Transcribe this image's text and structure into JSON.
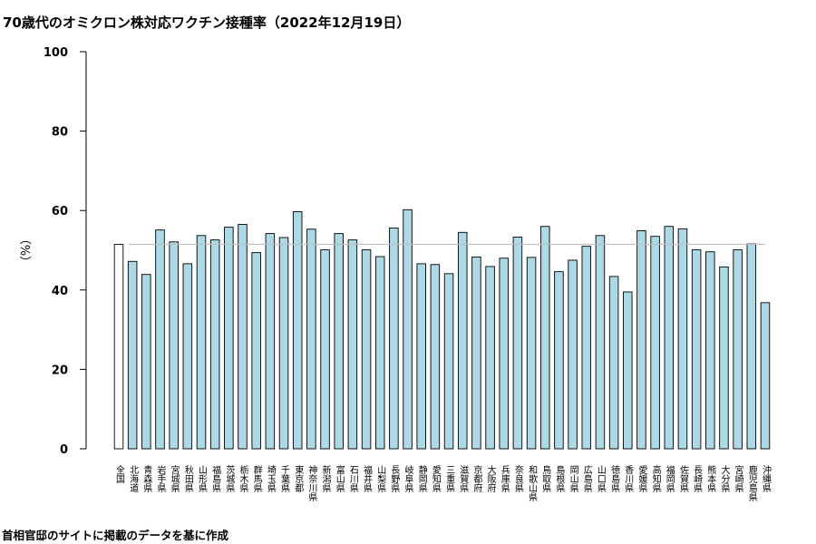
{
  "header": {
    "title": "70歳代のオミクロン株対応ワクチン接種率（2022年12月19日）"
  },
  "footer": {
    "caption": "首相官邸のサイトに掲載のデータを基に作成"
  },
  "colors": {
    "bar_fill": "#add8e6",
    "national_fill": "#ffffff",
    "bar_stroke": "#000000",
    "reference_line": "#bebebe"
  },
  "chart_data": {
    "type": "bar",
    "title": "70歳代のオミクロン株対応ワクチン接種率（2022年12月19日）",
    "ylabel": "（%）",
    "xlabel": "",
    "ylim": [
      0,
      100
    ],
    "yticks": [
      0,
      20,
      40,
      60,
      80,
      100
    ],
    "reference_line": 51.5,
    "grid": false,
    "categories": [
      "全国",
      "北海道",
      "青森県",
      "岩手県",
      "宮城県",
      "秋田県",
      "山形県",
      "福島県",
      "茨城県",
      "栃木県",
      "群馬県",
      "埼玉県",
      "千葉県",
      "東京都",
      "神奈川県",
      "新潟県",
      "富山県",
      "石川県",
      "福井県",
      "山梨県",
      "長野県",
      "岐阜県",
      "静岡県",
      "愛知県",
      "三重県",
      "滋賀県",
      "京都府",
      "大阪府",
      "兵庫県",
      "奈良県",
      "和歌山県",
      "鳥取県",
      "島根県",
      "岡山県",
      "広島県",
      "山口県",
      "徳島県",
      "香川県",
      "愛媛県",
      "高知県",
      "福岡県",
      "佐賀県",
      "長崎県",
      "熊本県",
      "大分県",
      "宮崎県",
      "鹿児島県",
      "沖縄県"
    ],
    "values": [
      51.5,
      47.2,
      43.9,
      55.1,
      52.1,
      46.6,
      53.7,
      52.6,
      55.8,
      56.5,
      49.4,
      54.2,
      53.2,
      59.7,
      55.3,
      50.1,
      54.2,
      52.6,
      50.1,
      48.4,
      55.6,
      60.2,
      46.6,
      46.4,
      44.1,
      54.5,
      48.3,
      45.9,
      48.0,
      53.3,
      48.2,
      56.0,
      44.6,
      47.5,
      51.0,
      53.7,
      43.4,
      39.5,
      54.9,
      53.5,
      56.0,
      55.4,
      50.1,
      49.6,
      45.8,
      50.1,
      51.6,
      36.8
    ]
  }
}
